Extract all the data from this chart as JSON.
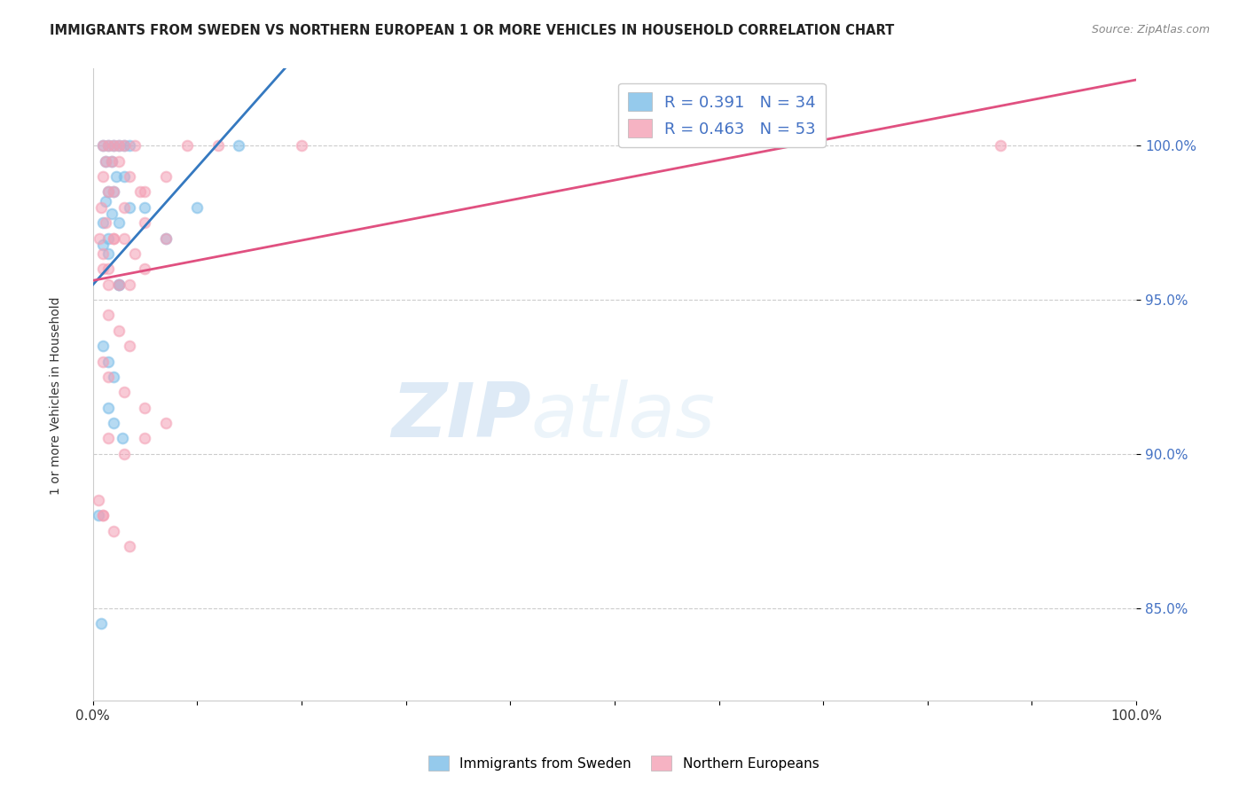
{
  "title": "IMMIGRANTS FROM SWEDEN VS NORTHERN EUROPEAN 1 OR MORE VEHICLES IN HOUSEHOLD CORRELATION CHART",
  "source": "Source: ZipAtlas.com",
  "ylabel": "1 or more Vehicles in Household",
  "xlim": [
    0,
    100
  ],
  "ylim": [
    82,
    102.5
  ],
  "yticks": [
    85.0,
    90.0,
    95.0,
    100.0
  ],
  "ytick_labels": [
    "85.0%",
    "90.0%",
    "95.0%",
    "100.0%"
  ],
  "xticks": [
    0,
    10,
    20,
    30,
    40,
    50,
    60,
    70,
    80,
    90,
    100
  ],
  "xtick_labels": [
    "0.0%",
    "",
    "",
    "",
    "",
    "",
    "",
    "",
    "",
    "",
    "100.0%"
  ],
  "legend_r_blue": "R = 0.391",
  "legend_n_blue": "N = 34",
  "legend_r_pink": "R = 0.463",
  "legend_n_pink": "N = 53",
  "blue_label": "Immigrants from Sweden",
  "pink_label": "Northern Europeans",
  "blue_color": "#7bbde8",
  "pink_color": "#f4a0b5",
  "blue_line_color": "#3579c0",
  "pink_line_color": "#e05080",
  "watermark_zip": "ZIP",
  "watermark_atlas": "atlas",
  "blue_scatter_x": [
    1.0,
    1.5,
    2.0,
    2.5,
    3.0,
    3.5,
    1.2,
    1.8,
    2.2,
    3.0,
    1.5,
    2.0,
    3.5,
    1.0,
    1.5,
    2.5,
    1.0,
    1.5,
    2.5,
    1.2,
    1.8,
    5.0,
    1.0,
    1.5,
    2.0,
    7.0,
    10.0,
    2.5,
    0.5,
    0.8,
    1.5,
    2.0,
    2.8,
    14.0
  ],
  "blue_scatter_y": [
    100.0,
    100.0,
    100.0,
    100.0,
    100.0,
    100.0,
    99.5,
    99.5,
    99.0,
    99.0,
    98.5,
    98.5,
    98.0,
    97.5,
    97.0,
    97.5,
    96.8,
    96.5,
    95.5,
    98.2,
    97.8,
    98.0,
    93.5,
    93.0,
    92.5,
    97.0,
    98.0,
    95.5,
    88.0,
    84.5,
    91.5,
    91.0,
    90.5,
    100.0
  ],
  "pink_scatter_x": [
    1.0,
    1.5,
    2.0,
    2.5,
    3.0,
    4.0,
    1.2,
    1.8,
    2.5,
    3.5,
    1.0,
    1.5,
    2.0,
    3.0,
    4.5,
    0.8,
    1.2,
    2.0,
    0.6,
    1.0,
    1.5,
    5.0,
    7.0,
    9.0,
    12.0,
    2.0,
    3.0,
    4.0,
    5.0,
    1.0,
    1.5,
    2.5,
    3.5,
    5.0,
    7.0,
    1.5,
    2.5,
    3.5,
    1.0,
    1.5,
    3.0,
    5.0,
    1.5,
    3.0,
    5.0,
    7.0,
    0.5,
    1.0,
    2.0,
    3.5,
    1.0,
    20.0,
    87.0
  ],
  "pink_scatter_y": [
    100.0,
    100.0,
    100.0,
    100.0,
    100.0,
    100.0,
    99.5,
    99.5,
    99.5,
    99.0,
    99.0,
    98.5,
    98.5,
    98.0,
    98.5,
    98.0,
    97.5,
    97.0,
    97.0,
    96.5,
    96.0,
    98.5,
    99.0,
    100.0,
    100.0,
    97.0,
    97.0,
    96.5,
    97.5,
    96.0,
    95.5,
    95.5,
    95.5,
    96.0,
    97.0,
    94.5,
    94.0,
    93.5,
    93.0,
    92.5,
    92.0,
    91.5,
    90.5,
    90.0,
    90.5,
    91.0,
    88.5,
    88.0,
    87.5,
    87.0,
    88.0,
    100.0,
    100.0
  ],
  "marker_size": 70,
  "marker_alpha": 0.55,
  "marker_linewidth": 1.5
}
